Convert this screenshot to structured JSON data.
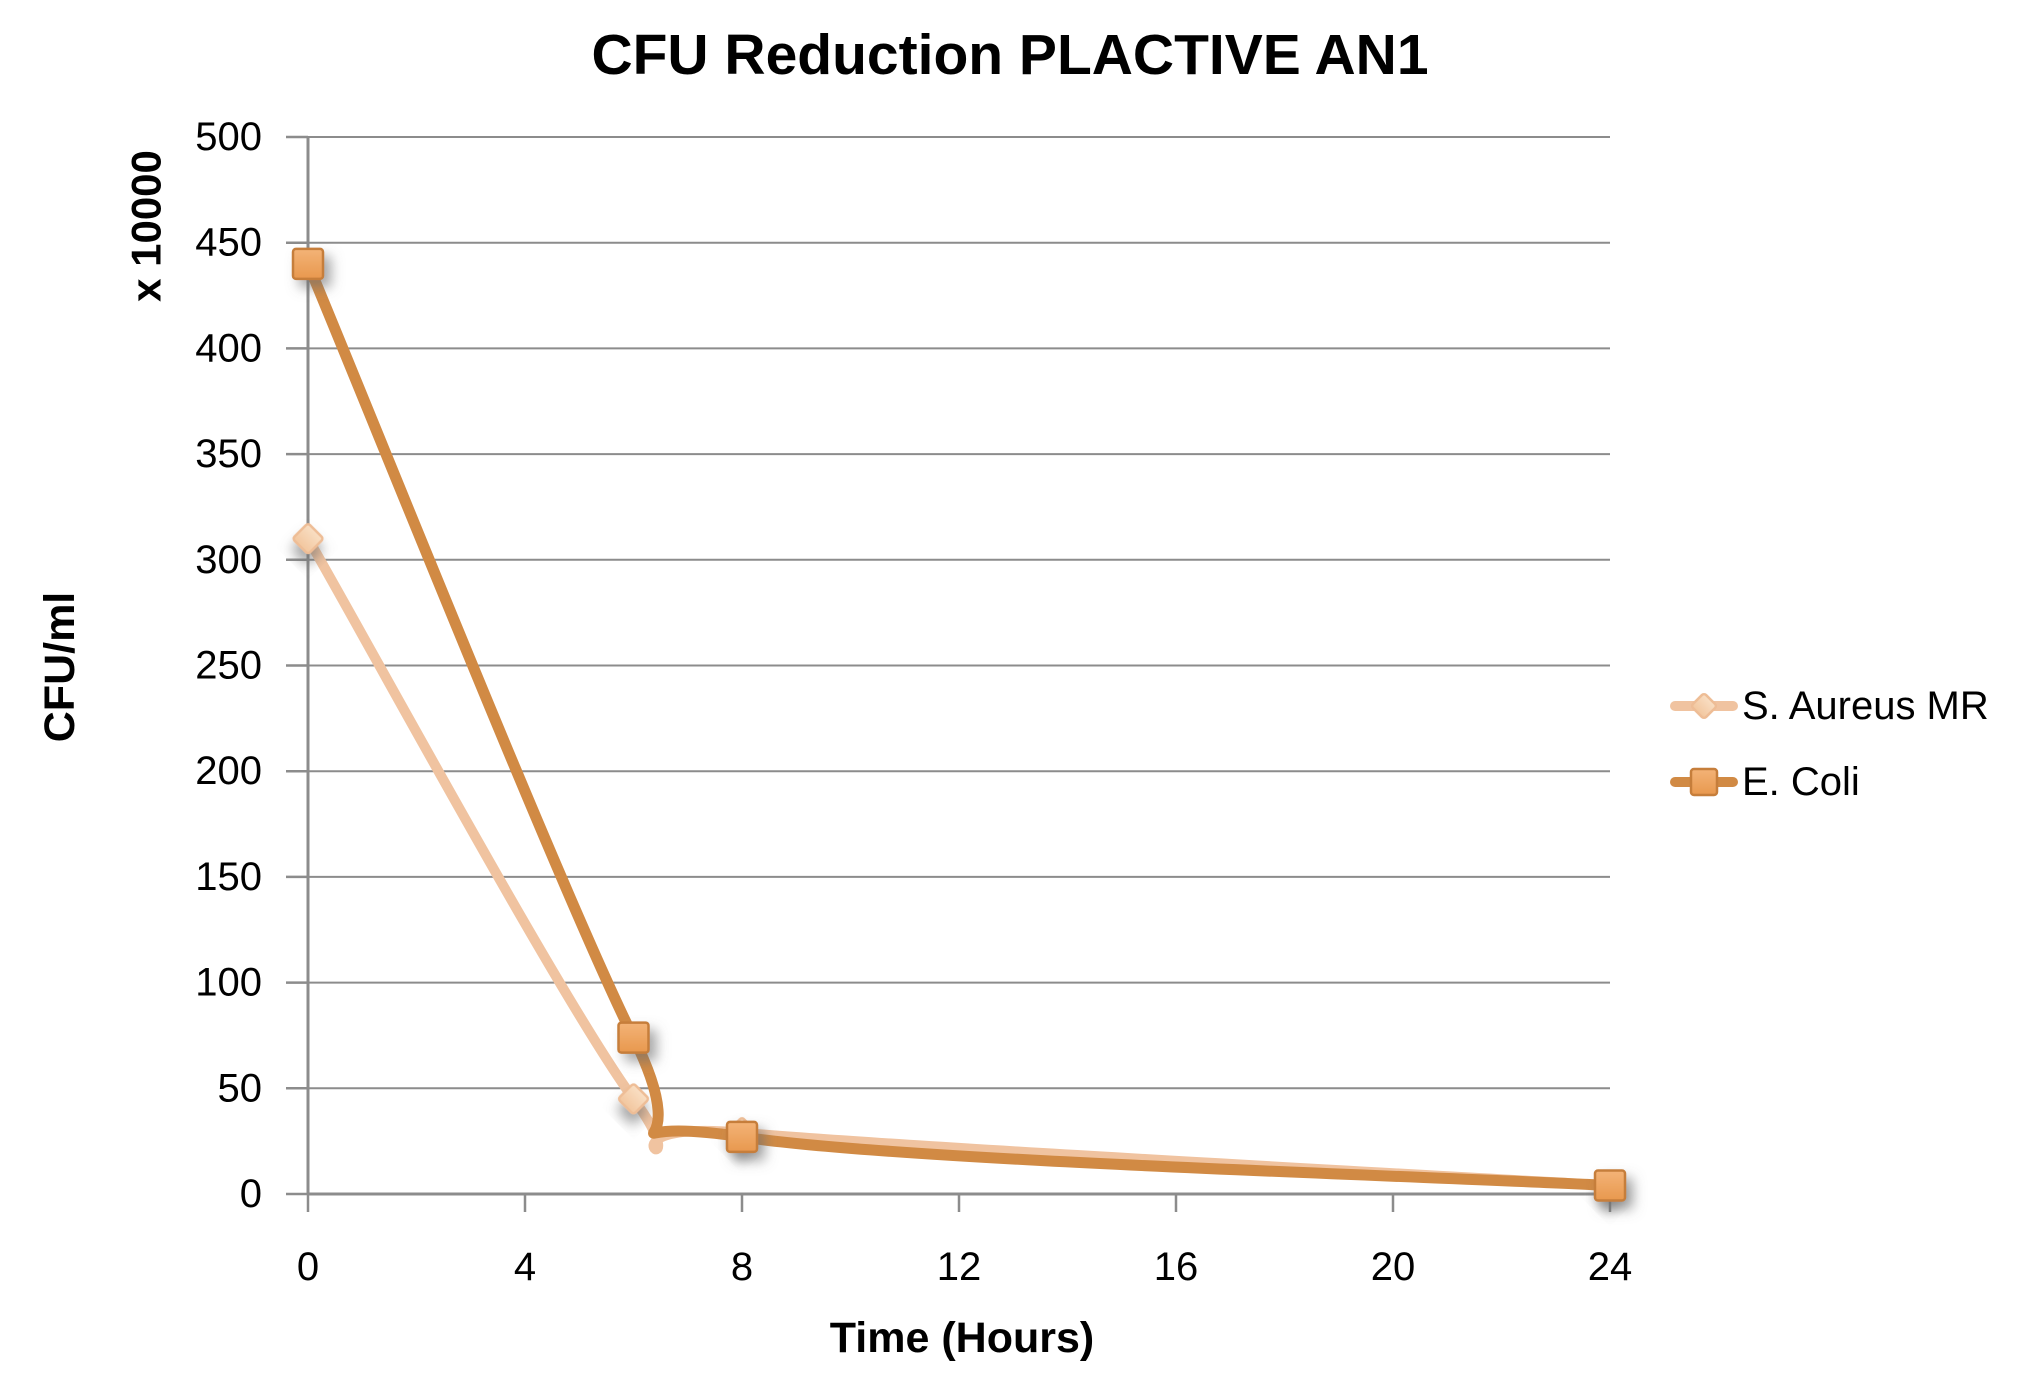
{
  "title": "CFU Reduction PLACTIVE AN1",
  "chart_data": {
    "type": "line",
    "title": "CFU Reduction PLACTIVE AN1",
    "xlabel": "Time (Hours)",
    "ylabel": "CFU/ml",
    "y_unit_note": "x 10000",
    "x": [
      0,
      6,
      8,
      24
    ],
    "series": [
      {
        "name": "S. Aureus MR",
        "values": [
          310,
          45,
          29,
          4
        ],
        "marker": "diamond",
        "line_color": "#F0C3A0",
        "marker_fill_top": "#F9DFC4",
        "marker_fill_bottom": "#F2C69E",
        "marker_border": "#EEBD96",
        "line_width": 10
      },
      {
        "name": "E. Coli",
        "values": [
          440,
          74,
          27,
          4
        ],
        "marker": "square",
        "line_color": "#D18A44",
        "marker_fill_top": "#F3B377",
        "marker_fill_bottom": "#E8984E",
        "marker_border": "#C67E3B",
        "line_width": 11
      }
    ],
    "xlim": [
      0,
      24
    ],
    "ylim": [
      0,
      500
    ],
    "x_ticks": [
      0,
      4,
      8,
      12,
      16,
      20,
      24
    ],
    "y_ticks": [
      0,
      50,
      100,
      150,
      200,
      250,
      300,
      350,
      400,
      450,
      500
    ],
    "grid": "horizontal-only",
    "legend_position": "right",
    "axis_color": "#8C8C8C",
    "text_color": "#000000",
    "background_color": "#FFFFFF"
  }
}
